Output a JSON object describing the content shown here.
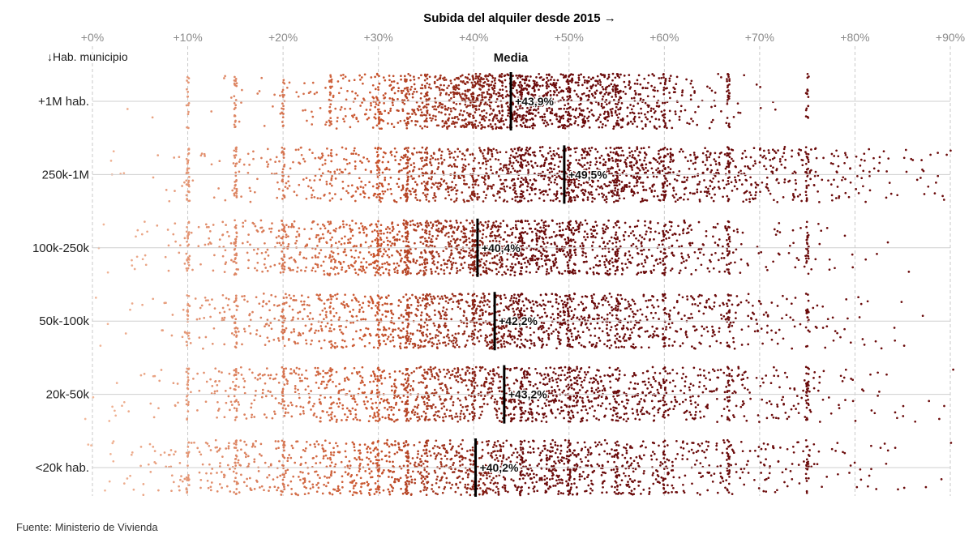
{
  "chart_data": {
    "type": "scatter",
    "title": "Subida del alquiler desde 2015 →",
    "ylabel": "↓Hab. municipio",
    "mean_label": "Media",
    "xlim": [
      0,
      90
    ],
    "x_ticks": [
      "+0%",
      "+10%",
      "+20%",
      "+30%",
      "+40%",
      "+50%",
      "+60%",
      "+70%",
      "+80%",
      "+90%"
    ],
    "x_tick_values": [
      0,
      10,
      20,
      30,
      40,
      50,
      60,
      70,
      80,
      90
    ],
    "grid": true,
    "categories": [
      "+1M hab.",
      "250k-1M",
      "100k-250k",
      "50k-100k",
      "20k-50k",
      "<20k hab."
    ],
    "means": [
      43.9,
      49.5,
      40.4,
      42.2,
      43.2,
      40.2
    ],
    "mean_labels": [
      "+43,9%",
      "+49,5%",
      "+40,4%",
      "+42,2%",
      "+43,2%",
      "+40,2%"
    ],
    "colors": {
      "low": "#f2b89a",
      "mid": "#c8532c",
      "high": "#6b0b0b",
      "mean_line": "#000000"
    }
  },
  "source": "Fuente: Ministerio de Vivienda"
}
